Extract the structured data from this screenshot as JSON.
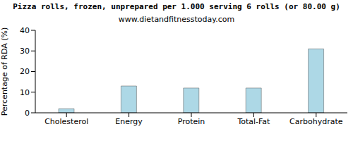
{
  "chart_data": {
    "type": "bar",
    "title": "Pizza rolls, frozen, unprepared per 1.000 serving 6 rolls (or 80.00 g)",
    "subtitle": "www.dietandfitnesstoday.com",
    "y_label": "Percentage of RDA (%)",
    "categories": [
      "Cholesterol",
      "Energy",
      "Protein",
      "Total-Fat",
      "Carbohydrate"
    ],
    "values": [
      2,
      13,
      12,
      12,
      31
    ],
    "color": "#add8e6",
    "ylim": [
      0,
      40
    ],
    "yticks": [
      0,
      10,
      20,
      30,
      40
    ],
    "grid": false
  }
}
